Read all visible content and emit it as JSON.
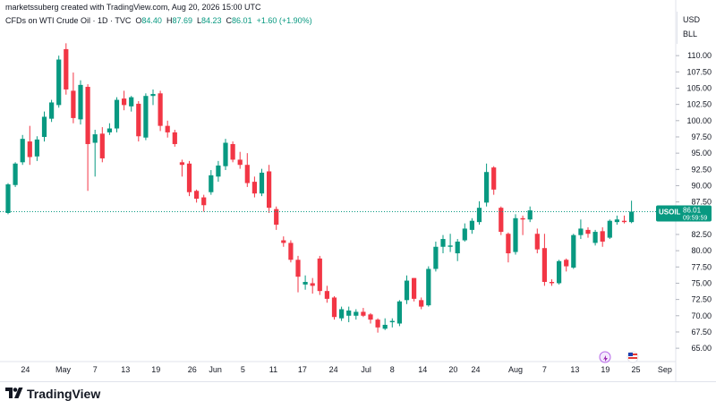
{
  "header": {
    "creator": "marketssuberg created with TradingView.com, Aug 20, 2026 15:00 UTC"
  },
  "legend": {
    "symbol": "CFDs on WTI Crude Oil · 1D · TVC",
    "open_label": "O",
    "open": "84.40",
    "high_label": "H",
    "high": "87.69",
    "low_label": "L",
    "low": "84.23",
    "close_label": "C",
    "close": "86.01",
    "change": "+1.60 (+1.90%)"
  },
  "currency": {
    "unit": "USD",
    "sub_unit": "BLL"
  },
  "price_tag": {
    "symbol": "USOIL",
    "price": "86.01",
    "countdown": "09:59:59"
  },
  "brand": {
    "name": "TradingView"
  },
  "colors": {
    "up": "#089981",
    "down": "#f23645",
    "accent": "#089981"
  },
  "chart_data": {
    "type": "candlestick",
    "x_tick_labels": [
      "24",
      "May",
      "7",
      "13",
      "19",
      "26",
      "Jun",
      "5",
      "11",
      "17",
      "24",
      "Jul",
      "8",
      "14",
      "20",
      "24",
      "Aug",
      "7",
      "13",
      "19",
      "25",
      "Sep"
    ],
    "y_tick_labels": [
      "65.00",
      "67.50",
      "70.00",
      "72.50",
      "75.00",
      "77.50",
      "80.00",
      "82.50",
      "85.00",
      "87.50",
      "90.00",
      "92.50",
      "95.00",
      "97.50",
      "100.00",
      "102.50",
      "105.00",
      "107.50",
      "110.00"
    ],
    "ylim": [
      63.5,
      112.5
    ],
    "last_price": 86.01,
    "candles": [
      {
        "o": 85.8,
        "h": 90.4,
        "l": 85.6,
        "c": 90.2
      },
      {
        "o": 90.1,
        "h": 93.6,
        "l": 89.8,
        "c": 93.4
      },
      {
        "o": 93.6,
        "h": 97.8,
        "l": 93.2,
        "c": 97.2
      },
      {
        "o": 96.8,
        "h": 99.2,
        "l": 93.2,
        "c": 94.4
      },
      {
        "o": 94.5,
        "h": 97.6,
        "l": 93.8,
        "c": 97.1
      },
      {
        "o": 97.5,
        "h": 101.4,
        "l": 96.8,
        "c": 100.6
      },
      {
        "o": 100.3,
        "h": 103.2,
        "l": 99.8,
        "c": 102.8
      },
      {
        "o": 102.4,
        "h": 110.0,
        "l": 102.0,
        "c": 109.4
      },
      {
        "o": 111.0,
        "h": 111.9,
        "l": 104.0,
        "c": 104.8
      },
      {
        "o": 104.6,
        "h": 107.4,
        "l": 99.6,
        "c": 100.4
      },
      {
        "o": 100.2,
        "h": 106.2,
        "l": 99.4,
        "c": 105.5
      },
      {
        "o": 105.2,
        "h": 105.6,
        "l": 89.2,
        "c": 96.4
      },
      {
        "o": 96.6,
        "h": 98.6,
        "l": 91.4,
        "c": 97.9
      },
      {
        "o": 98.0,
        "h": 99.0,
        "l": 93.6,
        "c": 94.2
      },
      {
        "o": 98.2,
        "h": 99.6,
        "l": 97.8,
        "c": 98.8
      },
      {
        "o": 98.8,
        "h": 103.6,
        "l": 98.2,
        "c": 103.2
      },
      {
        "o": 103.4,
        "h": 104.6,
        "l": 101.6,
        "c": 102.4
      },
      {
        "o": 102.2,
        "h": 103.8,
        "l": 101.4,
        "c": 103.6
      },
      {
        "o": 102.6,
        "h": 103.0,
        "l": 96.8,
        "c": 97.6
      },
      {
        "o": 97.4,
        "h": 104.2,
        "l": 97.0,
        "c": 103.8
      },
      {
        "o": 103.8,
        "h": 104.8,
        "l": 102.4,
        "c": 104.1
      },
      {
        "o": 104.2,
        "h": 104.6,
        "l": 98.4,
        "c": 99.2
      },
      {
        "o": 99.2,
        "h": 100.0,
        "l": 97.4,
        "c": 98.2
      },
      {
        "o": 98.2,
        "h": 98.6,
        "l": 96.0,
        "c": 96.4
      },
      {
        "o": 93.6,
        "h": 94.0,
        "l": 91.4,
        "c": 93.2
      },
      {
        "o": 93.4,
        "h": 93.8,
        "l": 88.4,
        "c": 89.0
      },
      {
        "o": 89.2,
        "h": 89.4,
        "l": 87.4,
        "c": 88.0
      },
      {
        "o": 88.2,
        "h": 88.6,
        "l": 86.0,
        "c": 87.0
      },
      {
        "o": 89.0,
        "h": 92.4,
        "l": 88.6,
        "c": 91.6
      },
      {
        "o": 91.4,
        "h": 93.8,
        "l": 90.6,
        "c": 93.1
      },
      {
        "o": 93.0,
        "h": 97.2,
        "l": 92.4,
        "c": 96.6
      },
      {
        "o": 96.4,
        "h": 96.8,
        "l": 93.6,
        "c": 94.0
      },
      {
        "o": 94.0,
        "h": 95.2,
        "l": 92.6,
        "c": 93.2
      },
      {
        "o": 93.2,
        "h": 95.0,
        "l": 89.8,
        "c": 90.4
      },
      {
        "o": 90.6,
        "h": 91.4,
        "l": 88.2,
        "c": 88.8
      },
      {
        "o": 88.8,
        "h": 92.6,
        "l": 88.4,
        "c": 92.0
      },
      {
        "o": 92.2,
        "h": 93.2,
        "l": 85.8,
        "c": 86.6
      },
      {
        "o": 86.4,
        "h": 86.8,
        "l": 83.2,
        "c": 84.0
      },
      {
        "o": 81.6,
        "h": 82.2,
        "l": 80.6,
        "c": 81.2
      },
      {
        "o": 81.2,
        "h": 81.6,
        "l": 78.2,
        "c": 78.6
      },
      {
        "o": 78.6,
        "h": 79.2,
        "l": 73.6,
        "c": 76.0
      },
      {
        "o": 74.8,
        "h": 76.2,
        "l": 74.0,
        "c": 75.2
      },
      {
        "o": 75.0,
        "h": 75.8,
        "l": 73.4,
        "c": 74.6
      },
      {
        "o": 78.8,
        "h": 79.2,
        "l": 73.2,
        "c": 73.8
      },
      {
        "o": 73.8,
        "h": 74.6,
        "l": 72.0,
        "c": 72.6
      },
      {
        "o": 72.8,
        "h": 73.0,
        "l": 69.4,
        "c": 69.8
      },
      {
        "o": 69.6,
        "h": 71.4,
        "l": 69.2,
        "c": 71.0
      },
      {
        "o": 70.0,
        "h": 71.4,
        "l": 69.0,
        "c": 70.8
      },
      {
        "o": 70.0,
        "h": 71.0,
        "l": 69.4,
        "c": 70.6
      },
      {
        "o": 70.6,
        "h": 71.2,
        "l": 69.8,
        "c": 70.0
      },
      {
        "o": 70.2,
        "h": 70.4,
        "l": 68.8,
        "c": 69.4
      },
      {
        "o": 69.4,
        "h": 69.6,
        "l": 67.4,
        "c": 68.2
      },
      {
        "o": 68.0,
        "h": 69.6,
        "l": 67.8,
        "c": 68.6
      },
      {
        "o": 69.0,
        "h": 69.6,
        "l": 68.2,
        "c": 69.2
      },
      {
        "o": 68.8,
        "h": 72.4,
        "l": 68.4,
        "c": 72.2
      },
      {
        "o": 72.4,
        "h": 76.2,
        "l": 71.8,
        "c": 75.4
      },
      {
        "o": 75.8,
        "h": 75.8,
        "l": 72.2,
        "c": 72.6
      },
      {
        "o": 72.4,
        "h": 72.8,
        "l": 71.0,
        "c": 71.4
      },
      {
        "o": 71.6,
        "h": 77.6,
        "l": 71.4,
        "c": 77.2
      },
      {
        "o": 77.2,
        "h": 81.4,
        "l": 76.8,
        "c": 80.6
      },
      {
        "o": 80.6,
        "h": 82.4,
        "l": 79.6,
        "c": 81.8
      },
      {
        "o": 80.6,
        "h": 82.6,
        "l": 79.8,
        "c": 80.8
      },
      {
        "o": 79.6,
        "h": 81.8,
        "l": 78.4,
        "c": 81.4
      },
      {
        "o": 81.6,
        "h": 84.2,
        "l": 81.4,
        "c": 83.4
      },
      {
        "o": 83.2,
        "h": 85.0,
        "l": 82.6,
        "c": 84.6
      },
      {
        "o": 84.4,
        "h": 87.6,
        "l": 84.0,
        "c": 86.6
      },
      {
        "o": 87.4,
        "h": 93.4,
        "l": 86.8,
        "c": 92.1
      },
      {
        "o": 92.8,
        "h": 93.0,
        "l": 88.6,
        "c": 89.4
      },
      {
        "o": 86.6,
        "h": 86.8,
        "l": 82.4,
        "c": 82.9
      },
      {
        "o": 82.6,
        "h": 82.8,
        "l": 78.2,
        "c": 79.6
      },
      {
        "o": 79.8,
        "h": 85.6,
        "l": 79.4,
        "c": 85.0
      },
      {
        "o": 85.0,
        "h": 85.4,
        "l": 82.4,
        "c": 84.8
      },
      {
        "o": 84.8,
        "h": 86.8,
        "l": 84.4,
        "c": 86.2
      },
      {
        "o": 82.6,
        "h": 83.4,
        "l": 79.6,
        "c": 80.2
      },
      {
        "o": 80.4,
        "h": 82.6,
        "l": 74.6,
        "c": 75.2
      },
      {
        "o": 75.2,
        "h": 75.6,
        "l": 74.6,
        "c": 75.0
      },
      {
        "o": 75.0,
        "h": 78.6,
        "l": 74.8,
        "c": 78.4
      },
      {
        "o": 78.6,
        "h": 78.8,
        "l": 76.8,
        "c": 77.6
      },
      {
        "o": 77.4,
        "h": 82.6,
        "l": 77.2,
        "c": 82.4
      },
      {
        "o": 82.4,
        "h": 84.8,
        "l": 81.8,
        "c": 83.4
      },
      {
        "o": 83.2,
        "h": 83.6,
        "l": 82.0,
        "c": 82.6
      },
      {
        "o": 81.2,
        "h": 83.2,
        "l": 80.8,
        "c": 82.9
      },
      {
        "o": 83.0,
        "h": 83.6,
        "l": 80.6,
        "c": 81.4
      },
      {
        "o": 82.0,
        "h": 84.8,
        "l": 81.8,
        "c": 84.6
      },
      {
        "o": 84.4,
        "h": 85.4,
        "l": 84.0,
        "c": 84.8
      },
      {
        "o": 84.6,
        "h": 85.4,
        "l": 84.2,
        "c": 84.4
      },
      {
        "o": 84.4,
        "h": 87.69,
        "l": 84.23,
        "c": 86.01
      }
    ]
  }
}
